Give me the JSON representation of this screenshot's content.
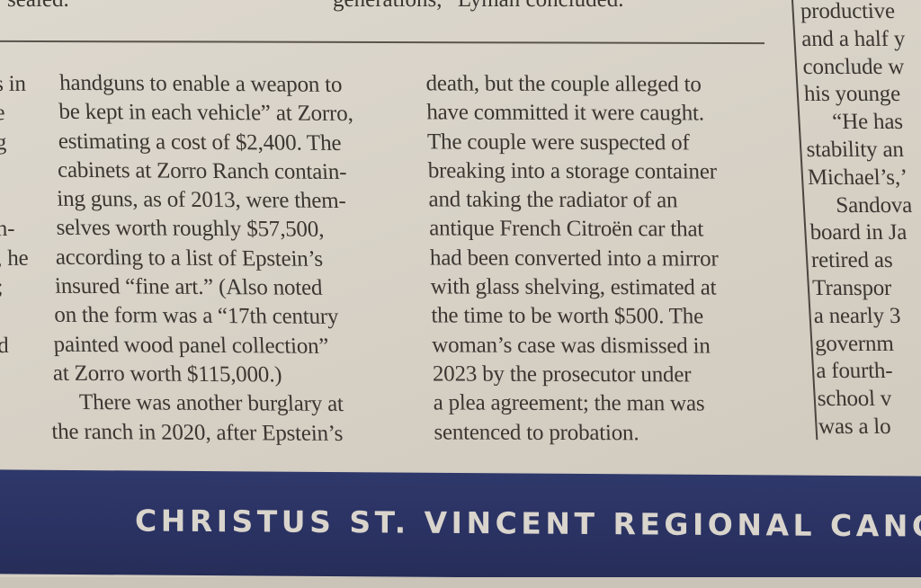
{
  "header": {
    "left_fragment": "sealed.",
    "center_fragment": "generations,” Lyman concluded."
  },
  "column1_fragments": [
    "s in",
    "e",
    "g",
    "",
    "",
    "n-",
    ", he",
    ";",
    "",
    "d",
    "",
    ""
  ],
  "column2": [
    "handguns to enable a weapon to",
    "be kept in each vehicle” at Zorro,",
    "estimating a cost of $2,400. The",
    "cabinets at Zorro Ranch contain-",
    "ing guns, as of 2013, were them-",
    "selves worth roughly $57,500,",
    "according to a list of Epstein’s",
    "insured “fine art.” (Also noted",
    "on the form was a “17th century",
    "painted wood panel collection”",
    "at Zorro worth $115,000.)",
    "There was another burglary at",
    "the ranch in 2020, after Epstein’s"
  ],
  "column3": [
    "death, but the couple alleged to",
    "have committed it were caught.",
    "The couple were suspected of",
    "breaking into a storage container",
    "and taking the radiator of an",
    "antique French Citroën car that",
    "had been converted into a mirror",
    "with glass shelving, estimated at",
    "the time to be worth $500. The",
    "woman’s case was dismissed in",
    "2023 by the prosecutor under",
    "a plea agreement; the man was",
    "sentenced to probation."
  ],
  "column4": [
    "productive",
    "and a half y",
    "conclude w",
    "his younge",
    "“He has",
    "stability an",
    "Michael’s,’",
    "Sandova",
    "board in Ja",
    "retired as",
    "Transpor",
    "a nearly 3",
    "governm",
    "a fourth-",
    "school v",
    "was a lo"
  ],
  "banner": {
    "text": "CHRISTUS ST. VINCENT REGIONAL CANC",
    "color": "#2c3566"
  }
}
